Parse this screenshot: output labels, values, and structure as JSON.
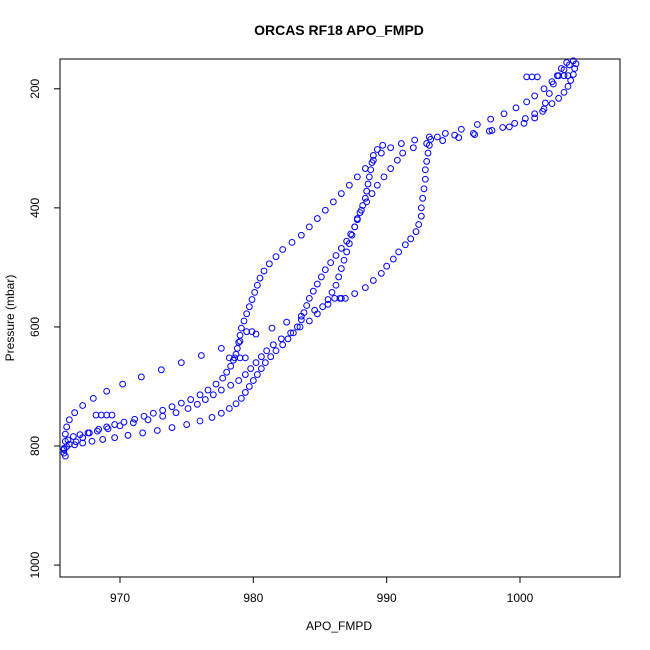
{
  "chart_data": {
    "type": "scatter",
    "title": "ORCAS RF18 APO_FMPD",
    "xlabel": "APO_FMPD",
    "ylabel": "Pressure (mbar)",
    "xlim": [
      965.5,
      1007.5
    ],
    "ylim": [
      1020,
      150
    ],
    "y_reversed": true,
    "x_ticks": [
      970,
      980,
      990,
      1000
    ],
    "y_ticks": [
      200,
      400,
      600,
      800,
      1000
    ],
    "series": [
      {
        "color": "#0000ff",
        "marker": "open-circle",
        "values": [
          [
            965.9,
            817
          ],
          [
            965.8,
            812
          ],
          [
            965.8,
            806
          ],
          [
            966.0,
            801
          ],
          [
            966.2,
            797
          ],
          [
            966.7,
            793
          ],
          [
            967.2,
            786
          ],
          [
            967.7,
            778
          ],
          [
            968.4,
            772
          ],
          [
            969.0,
            768
          ],
          [
            969.6,
            764
          ],
          [
            970.3,
            760
          ],
          [
            971.1,
            755
          ],
          [
            971.8,
            750
          ],
          [
            972.5,
            745
          ],
          [
            973.2,
            740
          ],
          [
            973.9,
            734
          ],
          [
            974.6,
            728
          ],
          [
            975.3,
            722
          ],
          [
            976.0,
            714
          ],
          [
            976.6,
            706
          ],
          [
            977.2,
            696
          ],
          [
            977.7,
            686
          ],
          [
            978.0,
            676
          ],
          [
            978.3,
            666
          ],
          [
            978.5,
            656
          ],
          [
            978.7,
            646
          ],
          [
            978.8,
            636
          ],
          [
            978.9,
            626
          ],
          [
            979.0,
            614
          ],
          [
            979.1,
            602
          ],
          [
            979.3,
            590
          ],
          [
            979.5,
            578
          ],
          [
            979.7,
            566
          ],
          [
            979.9,
            554
          ],
          [
            980.1,
            542
          ],
          [
            980.3,
            530
          ],
          [
            980.5,
            518
          ],
          [
            980.8,
            506
          ],
          [
            981.2,
            494
          ],
          [
            981.7,
            482
          ],
          [
            982.2,
            470
          ],
          [
            982.9,
            458
          ],
          [
            983.6,
            446
          ],
          [
            984.2,
            432
          ],
          [
            984.8,
            418
          ],
          [
            985.4,
            404
          ],
          [
            986.0,
            390
          ],
          [
            986.6,
            376
          ],
          [
            987.2,
            362
          ],
          [
            987.8,
            348
          ],
          [
            988.4,
            334
          ],
          [
            989.0,
            320
          ],
          [
            989.6,
            308
          ],
          [
            990.3,
            299
          ],
          [
            991.1,
            292
          ],
          [
            992.1,
            286
          ],
          [
            993.2,
            281
          ],
          [
            994.4,
            275
          ],
          [
            995.6,
            268
          ],
          [
            996.8,
            260
          ],
          [
            997.8,
            251
          ],
          [
            998.8,
            242
          ],
          [
            999.7,
            232
          ],
          [
            1000.5,
            222
          ],
          [
            1001.1,
            212
          ],
          [
            1001.8,
            200
          ],
          [
            1002.4,
            188
          ],
          [
            1002.9,
            178
          ],
          [
            1003.3,
            168
          ],
          [
            1003.7,
            160
          ],
          [
            1004.0,
            153
          ],
          [
            1003.5,
            156
          ],
          [
            1003.1,
            166
          ],
          [
            1002.8,
            178
          ],
          [
            1002.5,
            192
          ],
          [
            1002.2,
            208
          ],
          [
            1001.9,
            224
          ],
          [
            1001.7,
            238
          ],
          [
            1001.1,
            249
          ],
          [
            1000.3,
            258
          ],
          [
            999.2,
            264
          ],
          [
            997.9,
            270
          ],
          [
            996.5,
            275
          ],
          [
            995.1,
            278
          ],
          [
            993.8,
            281
          ],
          [
            993.3,
            285
          ],
          [
            993.2,
            295
          ],
          [
            993.1,
            308
          ],
          [
            993.0,
            322
          ],
          [
            992.9,
            336
          ],
          [
            992.9,
            352
          ],
          [
            992.8,
            368
          ],
          [
            992.7,
            384
          ],
          [
            992.6,
            400
          ],
          [
            992.6,
            414
          ],
          [
            992.4,
            428
          ],
          [
            992.2,
            440
          ],
          [
            991.8,
            452
          ],
          [
            991.4,
            462
          ],
          [
            990.9,
            474
          ],
          [
            990.5,
            486
          ],
          [
            990.0,
            498
          ],
          [
            989.6,
            510
          ],
          [
            989.0,
            522
          ],
          [
            988.4,
            534
          ],
          [
            987.6,
            544
          ],
          [
            986.6,
            552
          ],
          [
            985.6,
            562
          ],
          [
            984.6,
            572
          ],
          [
            983.6,
            582
          ],
          [
            982.5,
            592
          ],
          [
            981.4,
            602
          ],
          [
            980.2,
            612
          ],
          [
            979.0,
            624
          ],
          [
            977.6,
            636
          ],
          [
            976.1,
            648
          ],
          [
            974.6,
            660
          ],
          [
            973.1,
            672
          ],
          [
            971.6,
            684
          ],
          [
            970.2,
            696
          ],
          [
            969.0,
            708
          ],
          [
            968.0,
            720
          ],
          [
            967.2,
            732
          ],
          [
            966.6,
            744
          ],
          [
            966.2,
            756
          ],
          [
            966.0,
            768
          ],
          [
            965.9,
            780
          ],
          [
            965.9,
            792
          ],
          [
            965.8,
            804
          ],
          [
            968.2,
            748
          ],
          [
            968.6,
            748
          ],
          [
            969.0,
            748
          ],
          [
            969.4,
            748
          ],
          [
            978.2,
            652
          ],
          [
            978.6,
            652
          ],
          [
            979.0,
            652
          ],
          [
            979.4,
            652
          ],
          [
            979.5,
            608
          ],
          [
            979.9,
            608
          ],
          [
            986.1,
            552
          ],
          [
            986.5,
            552
          ],
          [
            986.9,
            552
          ],
          [
            1000.5,
            180
          ],
          [
            1000.9,
            180
          ],
          [
            1001.3,
            180
          ],
          [
            1003.3,
            178
          ],
          [
            1003.6,
            178
          ],
          [
            966.1,
            790
          ],
          [
            966.5,
            784
          ],
          [
            967.0,
            781
          ],
          [
            967.6,
            778
          ],
          [
            968.3,
            775
          ],
          [
            969.1,
            771
          ],
          [
            970.0,
            766
          ],
          [
            971.0,
            761
          ],
          [
            972.1,
            756
          ],
          [
            973.2,
            750
          ],
          [
            974.2,
            744
          ],
          [
            975.1,
            737
          ],
          [
            975.8,
            730
          ],
          [
            976.4,
            722
          ],
          [
            977.0,
            714
          ],
          [
            977.6,
            706
          ],
          [
            978.3,
            698
          ],
          [
            978.9,
            690
          ],
          [
            979.4,
            680
          ],
          [
            979.8,
            670
          ],
          [
            980.2,
            660
          ],
          [
            980.6,
            650
          ],
          [
            981.0,
            640
          ],
          [
            981.5,
            630
          ],
          [
            982.1,
            620
          ],
          [
            982.8,
            610
          ],
          [
            983.5,
            600
          ],
          [
            984.2,
            590
          ],
          [
            984.8,
            578
          ],
          [
            985.2,
            566
          ],
          [
            985.6,
            554
          ],
          [
            985.9,
            542
          ],
          [
            986.2,
            530
          ],
          [
            986.4,
            516
          ],
          [
            986.6,
            502
          ],
          [
            986.8,
            488
          ],
          [
            987.0,
            474
          ],
          [
            987.2,
            460
          ],
          [
            987.4,
            446
          ],
          [
            987.6,
            432
          ],
          [
            987.8,
            418
          ],
          [
            988.1,
            404
          ],
          [
            988.5,
            390
          ],
          [
            988.9,
            376
          ],
          [
            989.3,
            362
          ],
          [
            989.8,
            348
          ],
          [
            990.3,
            334
          ],
          [
            990.8,
            320
          ],
          [
            991.2,
            308
          ],
          [
            992.0,
            299
          ],
          [
            993.0,
            292
          ],
          [
            994.2,
            287
          ],
          [
            995.4,
            282
          ],
          [
            996.6,
            277
          ],
          [
            997.7,
            271
          ],
          [
            998.7,
            265
          ],
          [
            999.6,
            258
          ],
          [
            1000.4,
            250
          ],
          [
            1001.1,
            242
          ],
          [
            1001.8,
            234
          ],
          [
            1002.4,
            225
          ],
          [
            1002.9,
            216
          ],
          [
            1003.3,
            206
          ],
          [
            1003.6,
            196
          ],
          [
            1003.8,
            186
          ],
          [
            1004.0,
            176
          ],
          [
            1004.1,
            166
          ],
          [
            1004.2,
            158
          ],
          [
            966.6,
            798
          ],
          [
            967.2,
            795
          ],
          [
            967.9,
            792
          ],
          [
            968.7,
            789
          ],
          [
            969.6,
            786
          ],
          [
            970.6,
            782
          ],
          [
            971.7,
            778
          ],
          [
            972.8,
            774
          ],
          [
            973.9,
            769
          ],
          [
            975.0,
            764
          ],
          [
            976.0,
            758
          ],
          [
            976.9,
            752
          ],
          [
            977.6,
            745
          ],
          [
            978.2,
            737
          ],
          [
            978.7,
            729
          ],
          [
            979.1,
            720
          ],
          [
            979.4,
            710
          ],
          [
            979.7,
            700
          ],
          [
            980.0,
            690
          ],
          [
            980.3,
            680
          ],
          [
            980.6,
            670
          ],
          [
            980.9,
            660
          ],
          [
            981.3,
            650
          ],
          [
            981.7,
            640
          ],
          [
            982.2,
            630
          ],
          [
            982.6,
            620
          ],
          [
            983.0,
            610
          ],
          [
            983.3,
            600
          ],
          [
            983.6,
            588
          ],
          [
            983.8,
            576
          ],
          [
            984.0,
            564
          ],
          [
            984.2,
            552
          ],
          [
            984.5,
            540
          ],
          [
            984.8,
            528
          ],
          [
            985.1,
            516
          ],
          [
            985.4,
            504
          ],
          [
            985.8,
            492
          ],
          [
            986.2,
            480
          ],
          [
            986.6,
            468
          ],
          [
            987.0,
            456
          ],
          [
            987.3,
            444
          ],
          [
            987.6,
            432
          ],
          [
            987.8,
            420
          ],
          [
            988.0,
            408
          ],
          [
            988.2,
            396
          ],
          [
            988.4,
            384
          ],
          [
            988.5,
            372
          ],
          [
            988.6,
            360
          ],
          [
            988.7,
            348
          ],
          [
            988.8,
            336
          ],
          [
            988.9,
            324
          ],
          [
            989.0,
            312
          ],
          [
            989.3,
            302
          ],
          [
            989.7,
            295
          ]
        ]
      }
    ]
  }
}
